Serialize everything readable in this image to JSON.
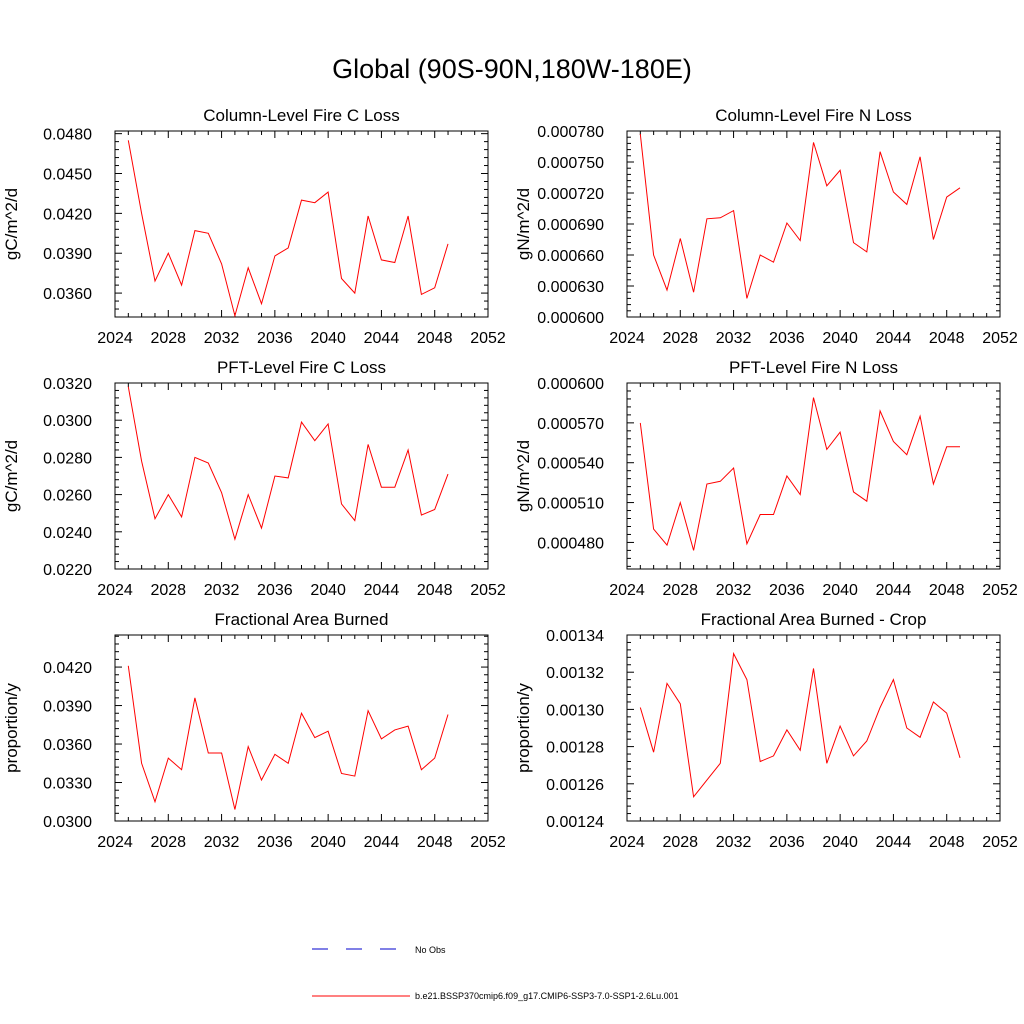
{
  "figure": {
    "title": "Global (90S-90N,180W-180E)"
  },
  "colors": {
    "model_line": "#ff0000",
    "obs_line": "#0000cc",
    "axis": "#000000"
  },
  "legend": [
    {
      "label": "No Obs",
      "style": "dashed",
      "color": "#0000cc"
    },
    {
      "label": "b.e21.BSSP370cmip6.f09_g17.CMIP6-SSP3-7.0-SSP1-2.6Lu.001",
      "style": "solid",
      "color": "#ff0000"
    }
  ],
  "chart_data": [
    {
      "type": "line",
      "title": "Column-Level Fire C Loss",
      "ylabel": "gC/m^2/d",
      "xlim": [
        2024,
        2052
      ],
      "xticks": [
        "2024",
        "2028",
        "2032",
        "2036",
        "2040",
        "2044",
        "2048",
        "2052"
      ],
      "ylim": [
        0.0342,
        0.0482
      ],
      "yticks": [
        "0.0360",
        "0.0390",
        "0.0420",
        "0.0450",
        "0.0480"
      ],
      "x": [
        2025,
        2026,
        2027,
        2028,
        2029,
        2030,
        2031,
        2032,
        2033,
        2034,
        2035,
        2036,
        2037,
        2038,
        2039,
        2040,
        2041,
        2042,
        2043,
        2044,
        2045,
        2046,
        2047,
        2048,
        2049
      ],
      "series": [
        {
          "values": [
            0.0475,
            0.042,
            0.0369,
            0.039,
            0.0366,
            0.0407,
            0.0405,
            0.0382,
            0.0343,
            0.0379,
            0.0352,
            0.0388,
            0.0394,
            0.043,
            0.0428,
            0.0436,
            0.0371,
            0.036,
            0.0418,
            0.0385,
            0.0383,
            0.0418,
            0.0359,
            0.0364,
            0.0397
          ]
        }
      ]
    },
    {
      "type": "line",
      "title": "Column-Level Fire N Loss",
      "ylabel": "gN/m^2/d",
      "xlim": [
        2024,
        2052
      ],
      "xticks": [
        "2024",
        "2028",
        "2032",
        "2036",
        "2040",
        "2044",
        "2048",
        "2052"
      ],
      "ylim": [
        0.0006,
        0.00078
      ],
      "yticks": [
        "0.000600",
        "0.000630",
        "0.000660",
        "0.000690",
        "0.000720",
        "0.000750",
        "0.000780"
      ],
      "x": [
        2025,
        2026,
        2027,
        2028,
        2029,
        2030,
        2031,
        2032,
        2033,
        2034,
        2035,
        2036,
        2037,
        2038,
        2039,
        2040,
        2041,
        2042,
        2043,
        2044,
        2045,
        2046,
        2047,
        2048,
        2049
      ],
      "series": [
        {
          "values": [
            0.000777,
            0.00066,
            0.000626,
            0.000676,
            0.000624,
            0.000695,
            0.000696,
            0.000703,
            0.000618,
            0.00066,
            0.000653,
            0.000691,
            0.000674,
            0.000769,
            0.000727,
            0.000742,
            0.000672,
            0.000663,
            0.00076,
            0.000721,
            0.000709,
            0.000755,
            0.000675,
            0.000716,
            0.000725
          ]
        }
      ]
    },
    {
      "type": "line",
      "title": "PFT-Level Fire C Loss",
      "ylabel": "gC/m^2/d",
      "xlim": [
        2024,
        2052
      ],
      "xticks": [
        "2024",
        "2028",
        "2032",
        "2036",
        "2040",
        "2044",
        "2048",
        "2052"
      ],
      "ylim": [
        0.022,
        0.032
      ],
      "yticks": [
        "0.0220",
        "0.0240",
        "0.0260",
        "0.0280",
        "0.0300",
        "0.0320"
      ],
      "x": [
        2025,
        2026,
        2027,
        2028,
        2029,
        2030,
        2031,
        2032,
        2033,
        2034,
        2035,
        2036,
        2037,
        2038,
        2039,
        2040,
        2041,
        2042,
        2043,
        2044,
        2045,
        2046,
        2047,
        2048,
        2049
      ],
      "series": [
        {
          "values": [
            0.0318,
            0.0278,
            0.0247,
            0.026,
            0.0248,
            0.028,
            0.0277,
            0.0261,
            0.0236,
            0.026,
            0.0242,
            0.027,
            0.0269,
            0.0299,
            0.0289,
            0.0298,
            0.0255,
            0.0246,
            0.0287,
            0.0264,
            0.0264,
            0.0284,
            0.0249,
            0.0252,
            0.0271
          ]
        }
      ]
    },
    {
      "type": "line",
      "title": "PFT-Level Fire N Loss",
      "ylabel": "gN/m^2/d",
      "xlim": [
        2024,
        2052
      ],
      "xticks": [
        "2024",
        "2028",
        "2032",
        "2036",
        "2040",
        "2044",
        "2048",
        "2052"
      ],
      "ylim": [
        0.00046,
        0.0006
      ],
      "yticks": [
        "0.000480",
        "0.000510",
        "0.000540",
        "0.000570",
        "0.000600"
      ],
      "x": [
        2025,
        2026,
        2027,
        2028,
        2029,
        2030,
        2031,
        2032,
        2033,
        2034,
        2035,
        2036,
        2037,
        2038,
        2039,
        2040,
        2041,
        2042,
        2043,
        2044,
        2045,
        2046,
        2047,
        2048,
        2049
      ],
      "series": [
        {
          "values": [
            0.00057,
            0.00049,
            0.000478,
            0.00051,
            0.000474,
            0.000524,
            0.000526,
            0.000536,
            0.000479,
            0.000501,
            0.000501,
            0.00053,
            0.000516,
            0.000589,
            0.00055,
            0.000563,
            0.000518,
            0.000511,
            0.000579,
            0.000556,
            0.000546,
            0.000575,
            0.000524,
            0.000552,
            0.000552
          ]
        }
      ]
    },
    {
      "type": "line",
      "title": "Fractional Area Burned",
      "ylabel": "proportion/y",
      "xlim": [
        2024,
        2052
      ],
      "xticks": [
        "2024",
        "2028",
        "2032",
        "2036",
        "2040",
        "2044",
        "2048",
        "2052"
      ],
      "ylim": [
        0.03,
        0.0445
      ],
      "yticks": [
        "0.0300",
        "0.0330",
        "0.0360",
        "0.0390",
        "0.0420"
      ],
      "x": [
        2025,
        2026,
        2027,
        2028,
        2029,
        2030,
        2031,
        2032,
        2033,
        2034,
        2035,
        2036,
        2037,
        2038,
        2039,
        2040,
        2041,
        2042,
        2043,
        2044,
        2045,
        2046,
        2047,
        2048,
        2049
      ],
      "series": [
        {
          "values": [
            0.0421,
            0.0345,
            0.0315,
            0.0349,
            0.034,
            0.0396,
            0.0353,
            0.0353,
            0.0309,
            0.0358,
            0.0332,
            0.0352,
            0.0345,
            0.0384,
            0.0365,
            0.037,
            0.0337,
            0.0335,
            0.0386,
            0.0364,
            0.0371,
            0.0374,
            0.034,
            0.0349,
            0.0383
          ]
        }
      ]
    },
    {
      "type": "line",
      "title": "Fractional Area Burned - Crop",
      "ylabel": "proportion/y",
      "xlim": [
        2024,
        2052
      ],
      "xticks": [
        "2024",
        "2028",
        "2032",
        "2036",
        "2040",
        "2044",
        "2048",
        "2052"
      ],
      "ylim": [
        0.00124,
        0.00134
      ],
      "yticks": [
        "0.00124",
        "0.00126",
        "0.00128",
        "0.00130",
        "0.00132",
        "0.00134"
      ],
      "x": [
        2025,
        2026,
        2027,
        2028,
        2029,
        2030,
        2031,
        2032,
        2033,
        2034,
        2035,
        2036,
        2037,
        2038,
        2039,
        2040,
        2041,
        2042,
        2043,
        2044,
        2045,
        2046,
        2047,
        2048,
        2049
      ],
      "series": [
        {
          "values": [
            0.001301,
            0.001277,
            0.001314,
            0.001303,
            0.001253,
            0.001262,
            0.001271,
            0.00133,
            0.001316,
            0.001272,
            0.001275,
            0.001289,
            0.001278,
            0.001322,
            0.001271,
            0.001291,
            0.001275,
            0.001283,
            0.001301,
            0.001316,
            0.00129,
            0.001285,
            0.001304,
            0.001298,
            0.001274
          ]
        }
      ]
    }
  ]
}
